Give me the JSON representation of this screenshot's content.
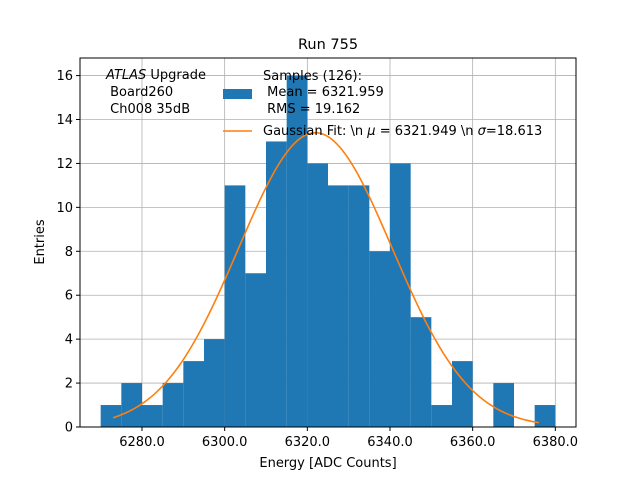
{
  "chart_data": {
    "type": "bar",
    "title": "Run 755",
    "xlabel": "Energy [ADC Counts]",
    "ylabel": "Entries",
    "xlim": [
      6265,
      6385
    ],
    "ylim": [
      0,
      16.8
    ],
    "xticks": [
      6280,
      6300,
      6320,
      6340,
      6360,
      6380
    ],
    "xtick_labels": [
      "6280.0",
      "6300.0",
      "6320.0",
      "6340.0",
      "6360.0",
      "6380.0"
    ],
    "yticks": [
      0,
      2,
      4,
      6,
      8,
      10,
      12,
      14,
      16
    ],
    "ytick_labels": [
      "0",
      "2",
      "4",
      "6",
      "8",
      "10",
      "12",
      "14",
      "16"
    ],
    "grid": true,
    "bin_edges": [
      6270,
      6275,
      6280,
      6285,
      6290,
      6295,
      6300,
      6305,
      6310,
      6315,
      6320,
      6325,
      6330,
      6335,
      6340,
      6345,
      6350,
      6355,
      6360,
      6365,
      6370,
      6375,
      6380
    ],
    "bin_counts": [
      1,
      2,
      1,
      2,
      3,
      4,
      11,
      7,
      13,
      16,
      12,
      11,
      11,
      8,
      12,
      5,
      1,
      3,
      0,
      2,
      0,
      1
    ],
    "fit": {
      "mean": 6321.949,
      "sigma": 18.613,
      "amplitude": 13.4,
      "x_range": [
        6273,
        6376
      ]
    },
    "colors": {
      "histogram": "#1f77b4",
      "fit": "#ff7f0e"
    },
    "legend": {
      "placement": "top-right",
      "entries": [
        {
          "lines": [
            "Samples (126):",
            " Mean = 6321.959",
            " RMS = 19.162"
          ]
        },
        {
          "text_pre": "Gaussian Fit: \\n ",
          "mu_symbol": "μ",
          "text_mid": " = 6321.949 \\n ",
          "sigma_symbol": "σ",
          "text_post": "=18.613"
        }
      ]
    },
    "annotation": {
      "italic": "ATLAS",
      "rest": " Upgrade",
      "line2": " Board260",
      "line3": " Ch008 35dB"
    }
  }
}
